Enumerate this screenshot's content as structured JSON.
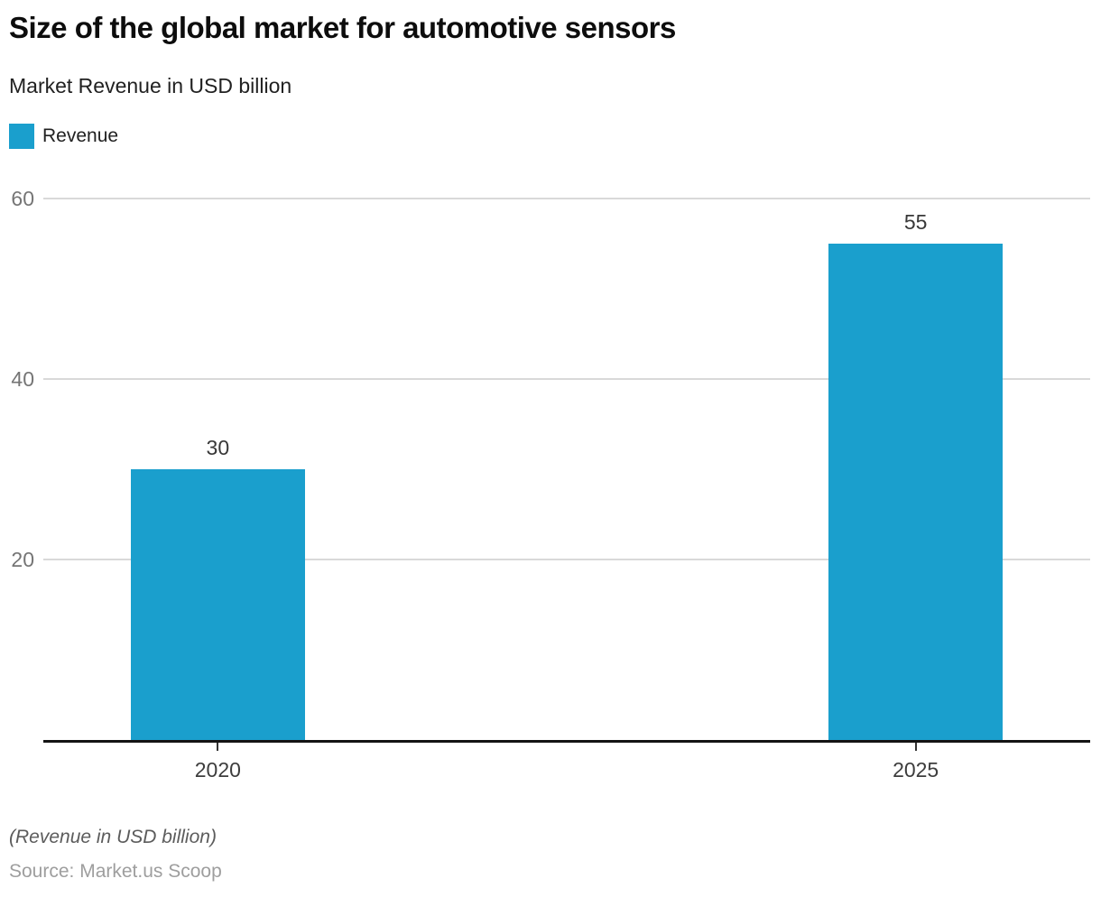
{
  "header": {
    "title": "Size of the global market for automotive sensors",
    "subtitle": "Market Revenue in USD billion"
  },
  "legend": {
    "label": "Revenue",
    "color": "#1A9FCD"
  },
  "chart_data": {
    "type": "bar",
    "title": "Size of the global market for automotive sensors",
    "subtitle": "Market Revenue in USD billion",
    "categories": [
      "2020",
      "2025"
    ],
    "series": [
      {
        "name": "Revenue",
        "values": [
          30,
          55
        ]
      }
    ],
    "value_labels": [
      "30",
      "55"
    ],
    "xlabel": "",
    "ylabel": "",
    "yticks": [
      20,
      40,
      60
    ],
    "ylim": [
      0,
      62
    ],
    "grid": true,
    "legend_position": "top-left",
    "bar_color": "#1A9FCD",
    "gridline_color": "#d9d9d9",
    "axis_color": "#141414"
  },
  "footer": {
    "note": "(Revenue in USD billion)",
    "source": "Source: Market.us Scoop"
  }
}
